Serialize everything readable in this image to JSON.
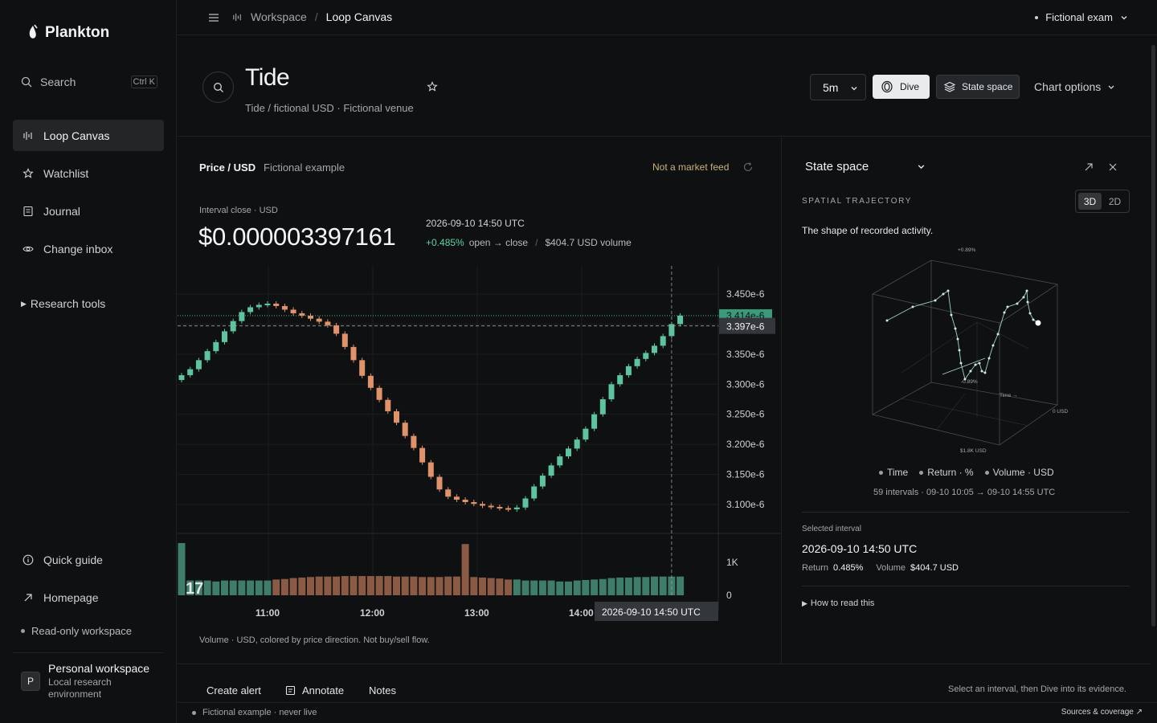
{
  "app": {
    "name": "Plankton"
  },
  "sidebar": {
    "search_label": "Search",
    "search_shortcut": "Ctrl K",
    "items": [
      {
        "label": "Loop Canvas",
        "icon": "bars-icon",
        "active": true
      },
      {
        "label": "Watchlist",
        "icon": "star-icon"
      },
      {
        "label": "Journal",
        "icon": "journal-icon"
      },
      {
        "label": "Change inbox",
        "icon": "eye-icon"
      }
    ],
    "research_tools": "Research tools",
    "quick_guide": "Quick guide",
    "homepage": "Homepage",
    "readonly": "Read-only workspace",
    "workspace": {
      "avatar": "P",
      "name": "Personal workspace",
      "sub": "Local research environment"
    }
  },
  "topbar": {
    "crumb_parent": "Workspace",
    "crumb_current": "Loop Canvas",
    "account": "Fictional exam"
  },
  "header": {
    "title": "Tide",
    "subtitle": "Tide / fictional USD · Fictional venue",
    "interval": "5m",
    "dive_label": "Dive",
    "state_space_label": "State space",
    "chart_options": "Chart options"
  },
  "chart_panel": {
    "label": "Price / USD",
    "label_note": "Fictional example",
    "not_feed": "Not a market feed",
    "interval_label": "Interval close · USD",
    "price": "$0.000003397161",
    "timestamp": "2026-09-10 14:50 UTC",
    "change": "+0.485%",
    "change_note": "open → close",
    "volume": "$404.7 USD volume",
    "volume_note": "Volume · USD, colored by price direction. Not buy/sell flow.",
    "crosshair_time": "2026-09-10 14:50 UTC",
    "last_price_tag": "3.414e-6",
    "crosshair_price_tag": "3.397e-6"
  },
  "chart_data": {
    "type": "candlestick",
    "x_ticks": [
      "11:00",
      "12:00",
      "13:00",
      "14:00"
    ],
    "y_ticks": [
      "3.450e-6",
      "3.400e-6",
      "3.350e-6",
      "3.300e-6",
      "3.250e-6",
      "3.200e-6",
      "3.150e-6",
      "3.100e-6"
    ],
    "y_tick_values": [
      3.45,
      3.4,
      3.35,
      3.3,
      3.25,
      3.2,
      3.15,
      3.1
    ],
    "volume_ticks": [
      "1K",
      "0"
    ],
    "closes_e6": [
      3.315,
      3.325,
      3.34,
      3.355,
      3.37,
      3.388,
      3.405,
      3.42,
      3.428,
      3.432,
      3.434,
      3.43,
      3.424,
      3.418,
      3.414,
      3.409,
      3.404,
      3.398,
      3.384,
      3.362,
      3.34,
      3.314,
      3.294,
      3.274,
      3.255,
      3.236,
      3.214,
      3.194,
      3.17,
      3.146,
      3.125,
      3.113,
      3.108,
      3.104,
      3.101,
      3.098,
      3.096,
      3.094,
      3.092,
      3.095,
      3.11,
      3.13,
      3.148,
      3.165,
      3.18,
      3.193,
      3.208,
      3.226,
      3.25,
      3.275,
      3.3,
      3.315,
      3.33,
      3.342,
      3.352,
      3.364,
      3.38,
      3.4,
      3.414
    ],
    "volumes": [
      1060,
      300,
      300,
      300,
      280,
      300,
      300,
      300,
      300,
      300,
      300,
      320,
      330,
      350,
      360,
      370,
      380,
      380,
      380,
      390,
      390,
      390,
      390,
      390,
      390,
      380,
      380,
      380,
      370,
      370,
      370,
      380,
      380,
      1040,
      370,
      360,
      350,
      340,
      320,
      320,
      300,
      300,
      300,
      300,
      280,
      280,
      300,
      310,
      320,
      330,
      350,
      360,
      360,
      370,
      370,
      380,
      380,
      380,
      380
    ]
  },
  "state_panel": {
    "title": "State space",
    "kicker": "SPATIAL TRAJECTORY",
    "mode_3d": "3D",
    "mode_2d": "2D",
    "desc": "The shape of recorded activity.",
    "axis_top": "+0.89%",
    "axis_mid": "-0.89%",
    "axis_time": "Time →",
    "axis_vol_right": "0 USD",
    "axis_vol_bottom": "$1.8K USD",
    "legend": [
      "Time",
      "Return · %",
      "Volume · USD"
    ],
    "intervals": "59 intervals · 09-10 10:05 → 09-10 14:55 UTC",
    "selected_label": "Selected interval",
    "selected_ts": "2026-09-10 14:50 UTC",
    "return_label": "Return",
    "return_value": "0.485%",
    "volume_label": "Volume",
    "volume_value": "$404.7 USD",
    "how": "How to read this"
  },
  "bottombar": {
    "create_alert": "Create alert",
    "annotate": "Annotate",
    "notes": "Notes",
    "hint": "Select an interval, then Dive into its evidence."
  },
  "footer": {
    "status": "Fictional example · never live",
    "sources": "Sources & coverage ↗"
  },
  "colors": {
    "up": "#5ec4a0",
    "down": "#e0926a",
    "up_vol": "#3d7d69",
    "down_vol": "#8a5a44"
  }
}
